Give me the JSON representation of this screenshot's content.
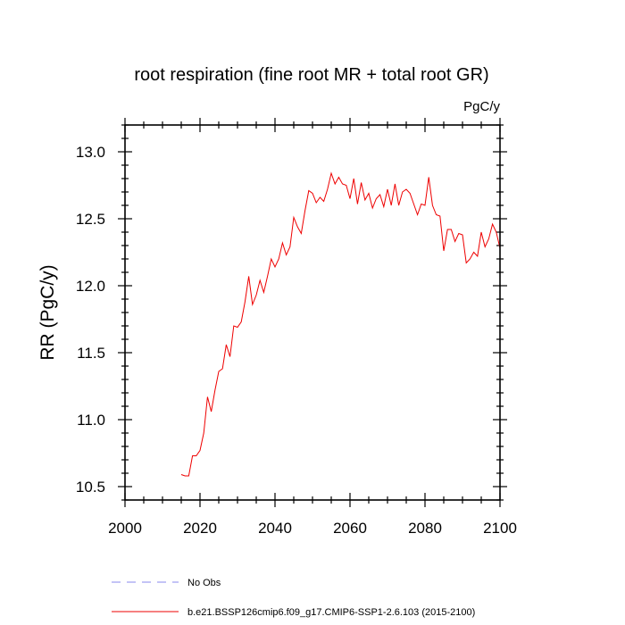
{
  "chart_data": {
    "type": "line",
    "title": "root respiration (fine root MR + total root GR)",
    "units_label": "PgC/y",
    "xlabel": "",
    "ylabel": "RR  (PgC/y)",
    "xlim": [
      2000,
      2100
    ],
    "ylim": [
      10.4,
      13.2
    ],
    "x_ticks": [
      2000,
      2020,
      2040,
      2060,
      2080,
      2100
    ],
    "x_tick_labels": [
      "2000",
      "2020",
      "2040",
      "2060",
      "2080",
      "2100"
    ],
    "y_ticks": [
      10.5,
      11.0,
      11.5,
      12.0,
      12.5,
      13.0
    ],
    "y_tick_labels": [
      "10.5",
      "11.0",
      "11.5",
      "12.0",
      "12.5",
      "13.0"
    ],
    "grid": false,
    "legend_position": "bottom-left",
    "series": [
      {
        "name": "No Obs",
        "color": "#8888ee",
        "dash": "dashed",
        "x": [],
        "values": []
      },
      {
        "name": "b.e21.BSSP126cmip6.f09_g17.CMIP6-SSP1-2.6.103 (2015-2100)",
        "color": "#ee0000",
        "dash": "solid",
        "x": [
          2015,
          2016,
          2017,
          2018,
          2019,
          2020,
          2021,
          2022,
          2023,
          2024,
          2025,
          2026,
          2027,
          2028,
          2029,
          2030,
          2031,
          2032,
          2033,
          2034,
          2035,
          2036,
          2037,
          2038,
          2039,
          2040,
          2041,
          2042,
          2043,
          2044,
          2045,
          2046,
          2047,
          2048,
          2049,
          2050,
          2051,
          2052,
          2053,
          2054,
          2055,
          2056,
          2057,
          2058,
          2059,
          2060,
          2061,
          2062,
          2063,
          2064,
          2065,
          2066,
          2067,
          2068,
          2069,
          2070,
          2071,
          2072,
          2073,
          2074,
          2075,
          2076,
          2077,
          2078,
          2079,
          2080,
          2081,
          2082,
          2083,
          2084,
          2085,
          2086,
          2087,
          2088,
          2089,
          2090,
          2091,
          2092,
          2093,
          2094,
          2095,
          2096,
          2097,
          2098,
          2099,
          2100
        ],
        "values": [
          10.59,
          10.58,
          10.58,
          10.73,
          10.73,
          10.77,
          10.9,
          11.17,
          11.06,
          11.22,
          11.36,
          11.38,
          11.56,
          11.47,
          11.7,
          11.69,
          11.73,
          11.88,
          12.07,
          11.86,
          11.93,
          12.04,
          11.95,
          12.07,
          12.2,
          12.14,
          12.2,
          12.32,
          12.23,
          12.29,
          12.51,
          12.44,
          12.39,
          12.56,
          12.71,
          12.69,
          12.62,
          12.66,
          12.63,
          12.72,
          12.84,
          12.76,
          12.81,
          12.76,
          12.75,
          12.65,
          12.8,
          12.61,
          12.77,
          12.64,
          12.69,
          12.58,
          12.65,
          12.68,
          12.59,
          12.72,
          12.6,
          12.76,
          12.6,
          12.7,
          12.72,
          12.69,
          12.61,
          12.53,
          12.61,
          12.6,
          12.81,
          12.6,
          12.53,
          12.52,
          12.26,
          12.42,
          12.42,
          12.33,
          12.39,
          12.38,
          12.17,
          12.2,
          12.25,
          12.22,
          12.4,
          12.29,
          12.35,
          12.46,
          12.4,
          12.28
        ]
      }
    ]
  }
}
